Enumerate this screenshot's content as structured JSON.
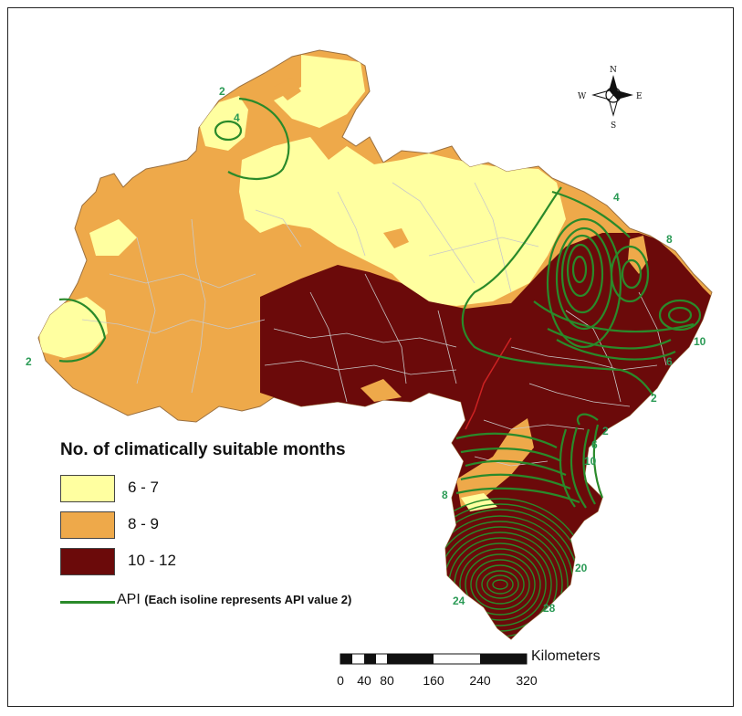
{
  "legend": {
    "title": "No. of climatically suitable months",
    "classes": [
      {
        "label": "6 - 7",
        "color": "#ffffa0"
      },
      {
        "label": "8 - 9",
        "color": "#eea94a"
      },
      {
        "label": "10 - 12",
        "color": "#6b0a0a"
      }
    ],
    "api_prefix": "API",
    "api_note": "(Each isoline represents API value 2)",
    "api_color": "#2a8a2a"
  },
  "isoline_labels": [
    "2",
    "4",
    "4",
    "8",
    "10",
    "6",
    "2",
    "2",
    "6",
    "10",
    "8",
    "20",
    "24",
    "28",
    "2"
  ],
  "compass": {
    "n": "N",
    "s": "S",
    "e": "E",
    "w": "W"
  },
  "scale": {
    "unit": "Kilometers",
    "ticks": [
      "0",
      "40",
      "80",
      "160",
      "240",
      "320"
    ]
  }
}
